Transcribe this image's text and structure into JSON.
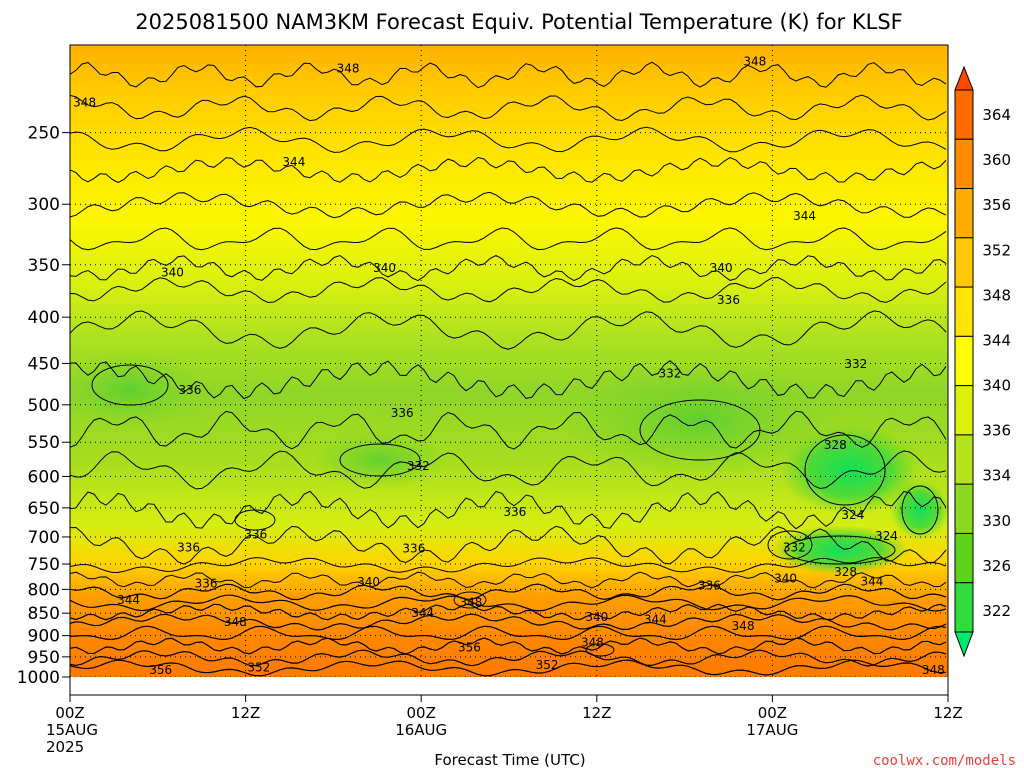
{
  "chart_data": {
    "type": "heatmap",
    "title": "2025081500 NAM3KM Forecast Equiv. Potential Temperature (K) for KLSF",
    "xlabel": "Forecast Time (UTC)",
    "ylabel": "",
    "y_scale": "log-pressure",
    "y_reversed": true,
    "ylim": [
      1000,
      200
    ],
    "y_ticks": [
      250,
      300,
      350,
      400,
      450,
      500,
      550,
      600,
      650,
      700,
      750,
      800,
      850,
      900,
      950,
      1000
    ],
    "x_range_hours": [
      0,
      60
    ],
    "x_ticks": [
      {
        "hour": 0,
        "label": "00Z",
        "sub": "15AUG",
        "sub2": "2025"
      },
      {
        "hour": 12,
        "label": "12Z",
        "sub": "",
        "sub2": ""
      },
      {
        "hour": 24,
        "label": "00Z",
        "sub": "16AUG",
        "sub2": ""
      },
      {
        "hour": 36,
        "label": "12Z",
        "sub": "",
        "sub2": ""
      },
      {
        "hour": 48,
        "label": "00Z",
        "sub": "17AUG",
        "sub2": ""
      },
      {
        "hour": 60,
        "label": "12Z",
        "sub": "",
        "sub2": ""
      }
    ],
    "grid": true,
    "colorbar": {
      "levels": [
        322,
        326,
        330,
        334,
        336,
        340,
        344,
        348,
        352,
        356,
        360,
        364
      ],
      "colors": [
        "#00e86e",
        "#30dc3c",
        "#5fd21e",
        "#8ad820",
        "#b4e21c",
        "#dcf00e",
        "#ffff00",
        "#ffe400",
        "#ffc800",
        "#ffab00",
        "#ff8c00",
        "#ff6a00",
        "#ff4800"
      ],
      "extend": "both"
    },
    "contour_labels": [
      {
        "value": "348",
        "hour": 1.0,
        "p": 232
      },
      {
        "value": "348",
        "hour": 19.0,
        "p": 213
      },
      {
        "value": "348",
        "hour": 46.8,
        "p": 209
      },
      {
        "value": "344",
        "hour": 15.3,
        "p": 270
      },
      {
        "value": "344",
        "hour": 50.2,
        "p": 310
      },
      {
        "value": "340",
        "hour": 7.0,
        "p": 358
      },
      {
        "value": "340",
        "hour": 21.5,
        "p": 354
      },
      {
        "value": "340",
        "hour": 44.5,
        "p": 354
      },
      {
        "value": "336",
        "hour": 45.0,
        "p": 384
      },
      {
        "value": "332",
        "hour": 41.0,
        "p": 463
      },
      {
        "value": "332",
        "hour": 53.7,
        "p": 452
      },
      {
        "value": "336",
        "hour": 8.2,
        "p": 483
      },
      {
        "value": "336",
        "hour": 22.7,
        "p": 512
      },
      {
        "value": "332",
        "hour": 23.8,
        "p": 586
      },
      {
        "value": "328",
        "hour": 52.3,
        "p": 555
      },
      {
        "value": "336",
        "hour": 30.4,
        "p": 659
      },
      {
        "value": "324",
        "hour": 53.5,
        "p": 664
      },
      {
        "value": "336",
        "hour": 12.7,
        "p": 697
      },
      {
        "value": "336",
        "hour": 8.1,
        "p": 721
      },
      {
        "value": "336",
        "hour": 23.5,
        "p": 723
      },
      {
        "value": "332",
        "hour": 49.5,
        "p": 721
      },
      {
        "value": "324",
        "hour": 55.8,
        "p": 700
      },
      {
        "value": "336",
        "hour": 9.3,
        "p": 790
      },
      {
        "value": "340",
        "hour": 20.4,
        "p": 787
      },
      {
        "value": "336",
        "hour": 43.7,
        "p": 794
      },
      {
        "value": "340",
        "hour": 48.9,
        "p": 780
      },
      {
        "value": "328",
        "hour": 53.0,
        "p": 767
      },
      {
        "value": "344",
        "hour": 54.8,
        "p": 786
      },
      {
        "value": "344",
        "hour": 4.0,
        "p": 824
      },
      {
        "value": "348",
        "hour": 27.4,
        "p": 829
      },
      {
        "value": "348",
        "hour": 11.3,
        "p": 872
      },
      {
        "value": "344",
        "hour": 24.1,
        "p": 852
      },
      {
        "value": "340",
        "hour": 36.0,
        "p": 861
      },
      {
        "value": "344",
        "hour": 40.0,
        "p": 866
      },
      {
        "value": "348",
        "hour": 46.0,
        "p": 881
      },
      {
        "value": "348",
        "hour": 35.7,
        "p": 918
      },
      {
        "value": "356",
        "hour": 27.3,
        "p": 930
      },
      {
        "value": "356",
        "hour": 6.2,
        "p": 985
      },
      {
        "value": "352",
        "hour": 12.9,
        "p": 978
      },
      {
        "value": "352",
        "hour": 32.6,
        "p": 972
      },
      {
        "value": "348",
        "hour": 59.0,
        "p": 985
      }
    ]
  },
  "credit": "coolwx.com/models"
}
